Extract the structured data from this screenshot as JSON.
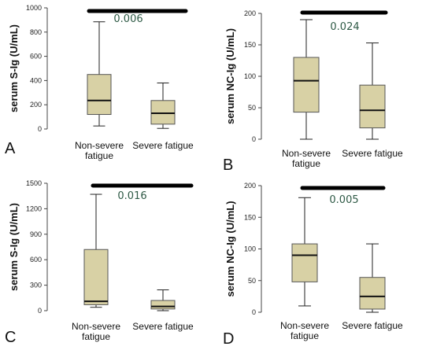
{
  "colors": {
    "box_fill": "#d8d1a5",
    "box_stroke": "#555555",
    "axis": "#444444",
    "bar": "#000000",
    "pvalue_text": "#2f5a46"
  },
  "chart_data": [
    {
      "type": "box",
      "panel_label": "A",
      "ylabel": "serum S-Ig (U/mL)",
      "ylim": [
        0,
        1000
      ],
      "yticks": [
        0,
        200,
        400,
        600,
        800,
        1000
      ],
      "categories": [
        {
          "label_lines": [
            "Non-severe",
            "fatigue"
          ],
          "whisker_low": 25,
          "q1": 120,
          "median": 235,
          "q3": 450,
          "whisker_high": 885
        },
        {
          "label_lines": [
            "Severe fatigue"
          ],
          "whisker_low": 5,
          "q1": 40,
          "median": 130,
          "q3": 235,
          "whisker_high": 380
        }
      ],
      "significance": {
        "text": "0.006"
      }
    },
    {
      "type": "box",
      "panel_label": "B",
      "ylabel": "serum NC-Ig (U/mL)",
      "ylim": [
        0,
        200
      ],
      "yticks": [
        0,
        50,
        100,
        150,
        200
      ],
      "categories": [
        {
          "label_lines": [
            "Non-severe",
            "fatigue"
          ],
          "whisker_low": 0,
          "q1": 43,
          "median": 93,
          "q3": 130,
          "whisker_high": 190
        },
        {
          "label_lines": [
            "Severe fatigue"
          ],
          "whisker_low": 0,
          "q1": 18,
          "median": 46,
          "q3": 86,
          "whisker_high": 153
        }
      ],
      "significance": {
        "text": "0.024"
      }
    },
    {
      "type": "box",
      "panel_label": "C",
      "ylabel": "serum S-Ig (U/mL)",
      "ylim": [
        0,
        1500
      ],
      "yticks": [
        0,
        300,
        600,
        900,
        1200,
        1500
      ],
      "categories": [
        {
          "label_lines": [
            "Non-severe",
            "fatigue"
          ],
          "whisker_low": 40,
          "q1": 70,
          "median": 110,
          "q3": 720,
          "whisker_high": 1370
        },
        {
          "label_lines": [
            "Severe fatigue"
          ],
          "whisker_low": 0,
          "q1": 20,
          "median": 50,
          "q3": 120,
          "whisker_high": 245
        }
      ],
      "significance": {
        "text": "0.016"
      }
    },
    {
      "type": "box",
      "panel_label": "D",
      "ylabel": "serum NC-Ig (U/mL)",
      "ylim": [
        0,
        200
      ],
      "yticks": [
        0,
        50,
        100,
        150,
        200
      ],
      "categories": [
        {
          "label_lines": [
            "Non-severe",
            "fatigue"
          ],
          "whisker_low": 10,
          "q1": 48,
          "median": 90,
          "q3": 108,
          "whisker_high": 181
        },
        {
          "label_lines": [
            "Severe fatigue"
          ],
          "whisker_low": 0,
          "q1": 5,
          "median": 25,
          "q3": 55,
          "whisker_high": 108
        }
      ],
      "significance": {
        "text": "0.005"
      }
    }
  ]
}
